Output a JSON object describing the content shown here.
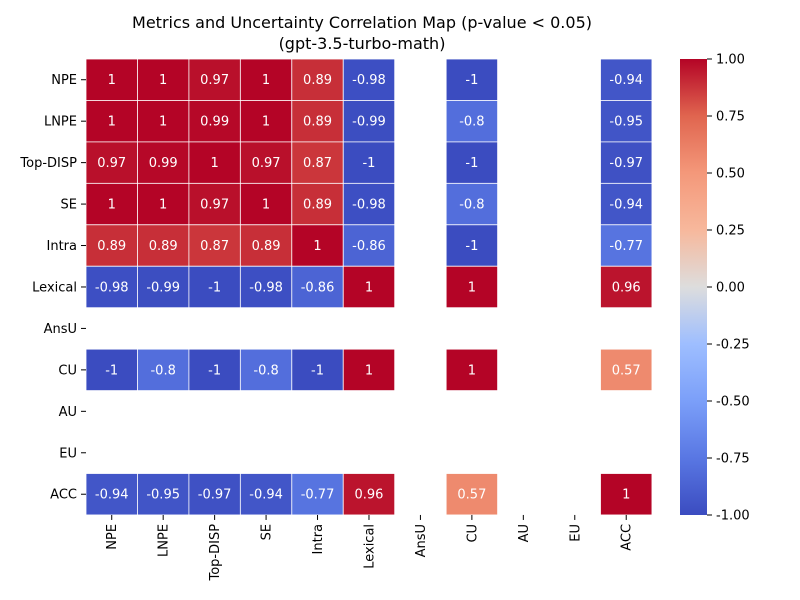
{
  "chart_data": {
    "type": "heatmap",
    "title": "Metrics and Uncertainty Correlation Map (p-value < 0.05)",
    "subtitle": "(gpt-3.5-turbo-math)",
    "rows": [
      "NPE",
      "LNPE",
      "Top-DISP",
      "SE",
      "Intra",
      "Lexical",
      "AnsU",
      "CU",
      "AU",
      "EU",
      "ACC"
    ],
    "cols": [
      "NPE",
      "LNPE",
      "Top-DISP",
      "SE",
      "Intra",
      "Lexical",
      "AnsU",
      "CU",
      "AU",
      "EU",
      "ACC"
    ],
    "values": [
      [
        1,
        1,
        0.97,
        1,
        0.89,
        -0.98,
        null,
        -1,
        null,
        null,
        -0.94
      ],
      [
        1,
        1,
        0.99,
        1,
        0.89,
        -0.99,
        null,
        -0.8,
        null,
        null,
        -0.95
      ],
      [
        0.97,
        0.99,
        1,
        0.97,
        0.87,
        -1,
        null,
        -1,
        null,
        null,
        -0.97
      ],
      [
        1,
        1,
        0.97,
        1,
        0.89,
        -0.98,
        null,
        -0.8,
        null,
        null,
        -0.94
      ],
      [
        0.89,
        0.89,
        0.87,
        0.89,
        1,
        -0.86,
        null,
        -1,
        null,
        null,
        -0.77
      ],
      [
        -0.98,
        -0.99,
        -1,
        -0.98,
        -0.86,
        1,
        null,
        1,
        null,
        null,
        0.96
      ],
      [
        null,
        null,
        null,
        null,
        null,
        null,
        null,
        null,
        null,
        null,
        null
      ],
      [
        -1,
        -0.8,
        -1,
        -0.8,
        -1,
        1,
        null,
        1,
        null,
        null,
        0.57
      ],
      [
        null,
        null,
        null,
        null,
        null,
        null,
        null,
        null,
        null,
        null,
        null
      ],
      [
        null,
        null,
        null,
        null,
        null,
        null,
        null,
        null,
        null,
        null,
        null
      ],
      [
        -0.94,
        -0.95,
        -0.97,
        -0.94,
        -0.77,
        0.96,
        null,
        0.57,
        null,
        null,
        1
      ]
    ],
    "colorbar": {
      "min": -1,
      "max": 1,
      "ticks": [
        "1.00",
        "0.75",
        "0.50",
        "0.25",
        "0.00",
        "-0.25",
        "-0.50",
        "-0.75",
        "-1.00"
      ],
      "colormap": "coolwarm"
    },
    "colors": {
      "cold": "#3b4cc0",
      "mid": "#dddddd",
      "hot": "#b40426"
    }
  }
}
